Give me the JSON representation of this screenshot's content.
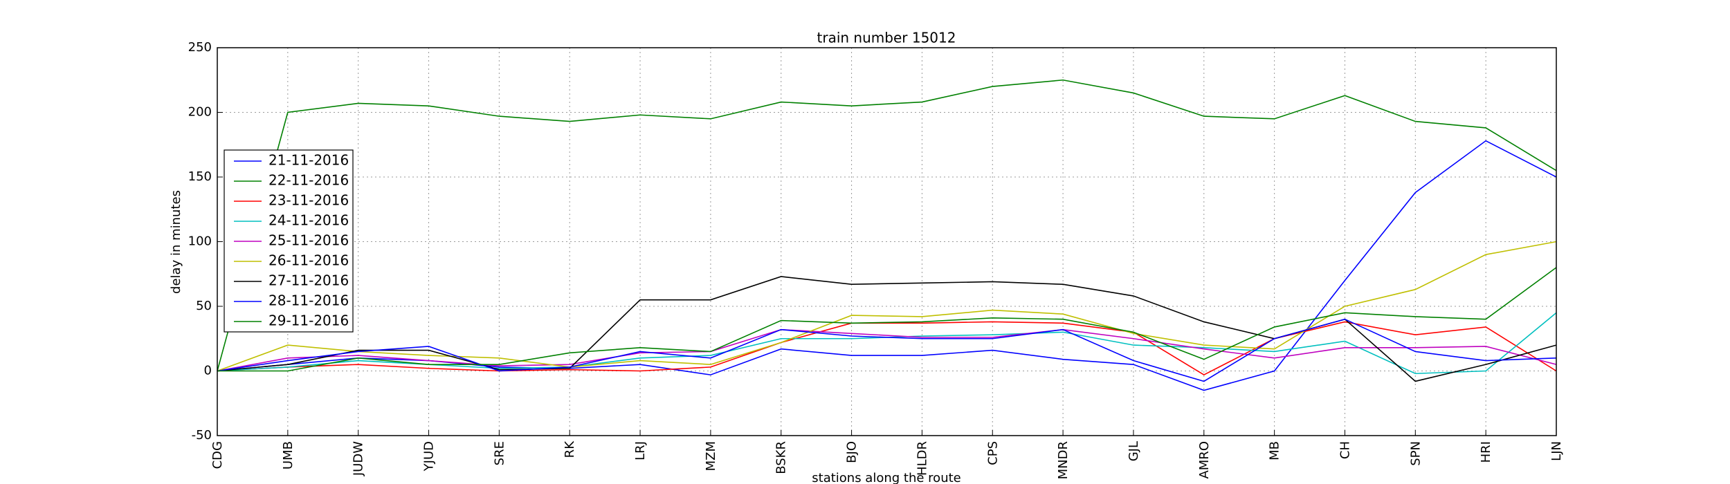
{
  "chart_data": {
    "type": "line",
    "title": "train number 15012",
    "x_label": "stations along the route",
    "y_label": "delay in minutes",
    "categories": [
      "CDG",
      "UMB",
      "JUDW",
      "YJUD",
      "SRE",
      "RK",
      "LRJ",
      "MZM",
      "BSKR",
      "BJO",
      "HLDR",
      "CPS",
      "MNDR",
      "GJL",
      "AMRO",
      "MB",
      "CH",
      "SPN",
      "HRI",
      "LJN"
    ],
    "ylim": [
      -50,
      250
    ],
    "yticks": [
      -50,
      0,
      50,
      100,
      150,
      200,
      250
    ],
    "grid": true,
    "legend": "left",
    "series": [
      {
        "name": "21-11-2016",
        "color": "#0000ff",
        "values": [
          0,
          5,
          10,
          8,
          3,
          2,
          5,
          -3,
          17,
          12,
          12,
          16,
          9,
          5,
          -15,
          0,
          70,
          138,
          178,
          150
        ]
      },
      {
        "name": "22-11-2016",
        "color": "#008000",
        "values": [
          0,
          200,
          207,
          205,
          197,
          193,
          198,
          195,
          208,
          205,
          208,
          220,
          225,
          215,
          197,
          195,
          213,
          193,
          188,
          155
        ]
      },
      {
        "name": "23-11-2016",
        "color": "#ff0000",
        "values": [
          0,
          3,
          5,
          2,
          0,
          1,
          0,
          3,
          22,
          37,
          37,
          38,
          37,
          30,
          -3,
          25,
          38,
          28,
          34,
          0
        ]
      },
      {
        "name": "24-11-2016",
        "color": "#00bfbf",
        "values": [
          0,
          3,
          8,
          5,
          2,
          3,
          10,
          12,
          25,
          25,
          27,
          28,
          30,
          20,
          18,
          15,
          23,
          -2,
          0,
          45
        ]
      },
      {
        "name": "25-11-2016",
        "color": "#bf00bf",
        "values": [
          0,
          10,
          12,
          8,
          4,
          5,
          14,
          15,
          32,
          29,
          26,
          26,
          32,
          25,
          17,
          10,
          18,
          18,
          19,
          5
        ]
      },
      {
        "name": "26-11-2016",
        "color": "#bfbf00",
        "values": [
          0,
          20,
          15,
          12,
          10,
          3,
          8,
          5,
          22,
          43,
          42,
          47,
          44,
          29,
          20,
          17,
          50,
          63,
          90,
          100
        ]
      },
      {
        "name": "27-11-2016",
        "color": "#000000",
        "values": [
          0,
          5,
          16,
          16,
          1,
          2,
          55,
          55,
          73,
          67,
          68,
          69,
          67,
          58,
          38,
          25,
          40,
          -8,
          5,
          20
        ]
      },
      {
        "name": "28-11-2016",
        "color": "#0000ff",
        "values": [
          0,
          8,
          15,
          19,
          0,
          3,
          15,
          10,
          32,
          27,
          25,
          25,
          32,
          8,
          -8,
          25,
          40,
          15,
          8,
          10
        ]
      },
      {
        "name": "29-11-2016",
        "color": "#008000",
        "values": [
          0,
          0,
          10,
          5,
          5,
          14,
          18,
          15,
          39,
          37,
          38,
          41,
          40,
          30,
          9,
          34,
          45,
          42,
          40,
          80
        ]
      }
    ]
  }
}
